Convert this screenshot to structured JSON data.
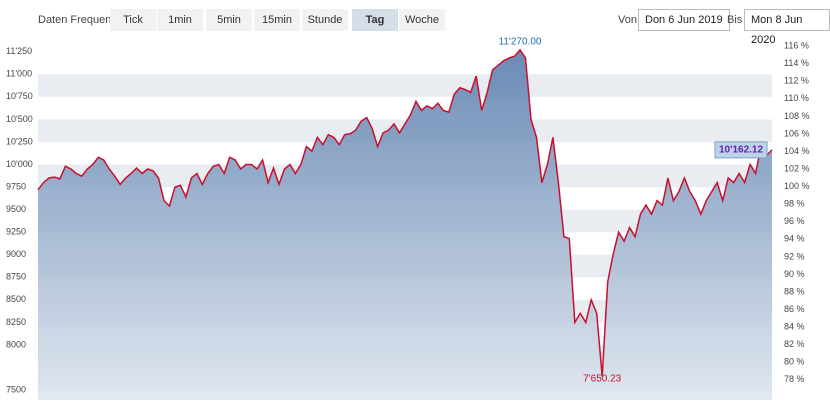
{
  "toolbar": {
    "frequency_label": "Daten Frequenz",
    "buttons": [
      "Tick",
      "1min",
      "5min",
      "15min",
      "Stunde",
      "Tag",
      "Woche"
    ],
    "active": "Tag",
    "from_label": "Von",
    "from_value": "Don 6 Jun 2019",
    "to_label": "Bis",
    "to_value": "Mon 8 Jun 2020"
  },
  "chart_data": {
    "type": "area",
    "values": [
      9720,
      9800,
      9850,
      9860,
      9840,
      9980,
      9950,
      9900,
      9870,
      9950,
      10000,
      10080,
      10050,
      9950,
      9870,
      9780,
      9850,
      9900,
      9960,
      9900,
      9950,
      9930,
      9850,
      9600,
      9540,
      9750,
      9770,
      9640,
      9850,
      9900,
      9780,
      9900,
      9980,
      10000,
      9900,
      10080,
      10050,
      9950,
      10000,
      10000,
      9950,
      10050,
      9800,
      9960,
      9780,
      9950,
      10000,
      9900,
      10000,
      10200,
      10150,
      10300,
      10220,
      10330,
      10300,
      10220,
      10330,
      10340,
      10380,
      10480,
      10520,
      10400,
      10200,
      10350,
      10380,
      10450,
      10350,
      10450,
      10550,
      10700,
      10600,
      10650,
      10620,
      10680,
      10600,
      10580,
      10780,
      10850,
      10830,
      10800,
      10980,
      10600,
      10800,
      11050,
      11100,
      11150,
      11180,
      11200,
      11270,
      11180,
      10500,
      10300,
      9800,
      10000,
      10300,
      9800,
      9200,
      9180,
      8250,
      8350,
      8250,
      8500,
      8350,
      7650.23,
      8700,
      9000,
      9250,
      9150,
      9300,
      9200,
      9450,
      9550,
      9450,
      9600,
      9550,
      9850,
      9600,
      9700,
      9850,
      9700,
      9600,
      9450,
      9600,
      9700,
      9800,
      9600,
      9850,
      9800,
      9900,
      9800,
      10000,
      9900,
      10200,
      10100,
      10162.12
    ],
    "color": "#c8102e",
    "fill_top": "#5b7fae",
    "fill_bottom": "#dfe6ef",
    "ylim": [
      7390,
      11380
    ],
    "yticks": [
      7500,
      8000,
      8250,
      8500,
      8750,
      9000,
      9250,
      9500,
      9750,
      {
        "value": 10000,
        "label": "10'000"
      },
      {
        "value": 10250,
        "label": "10'250"
      },
      {
        "value": 10500,
        "label": "10'500"
      },
      {
        "value": 10750,
        "label": "10'750"
      },
      {
        "value": 11000,
        "label": "11'000"
      },
      {
        "value": 11250,
        "label": "11'250"
      }
    ],
    "y2lim": [
      75.7,
      116.7
    ],
    "y2ticks": [
      {
        "value": 78,
        "label": "78 %"
      },
      {
        "value": 80,
        "label": "80 %"
      },
      {
        "value": 82,
        "label": "82 %"
      },
      {
        "value": 84,
        "label": "84 %"
      },
      {
        "value": 86,
        "label": "86 %"
      },
      {
        "value": 88,
        "label": "88 %"
      },
      {
        "value": 90,
        "label": "90 %"
      },
      {
        "value": 92,
        "label": "92 %"
      },
      {
        "value": 94,
        "label": "94 %"
      },
      {
        "value": 96,
        "label": "96 %"
      },
      {
        "value": 98,
        "label": "98 %"
      },
      {
        "value": 100,
        "label": "100 %"
      },
      {
        "value": 102,
        "label": "102 %"
      },
      {
        "value": 104,
        "label": "104 %"
      },
      {
        "value": 106,
        "label": "106 %"
      },
      {
        "value": 108,
        "label": "108 %"
      },
      {
        "value": 110,
        "label": "110 %"
      },
      {
        "value": 112,
        "label": "112 %"
      },
      {
        "value": 114,
        "label": "114 %"
      },
      {
        "value": 116,
        "label": "116 %"
      }
    ],
    "max_label": "11'270.00",
    "min_label": "7'650.23",
    "last_label": "10'162.12"
  }
}
